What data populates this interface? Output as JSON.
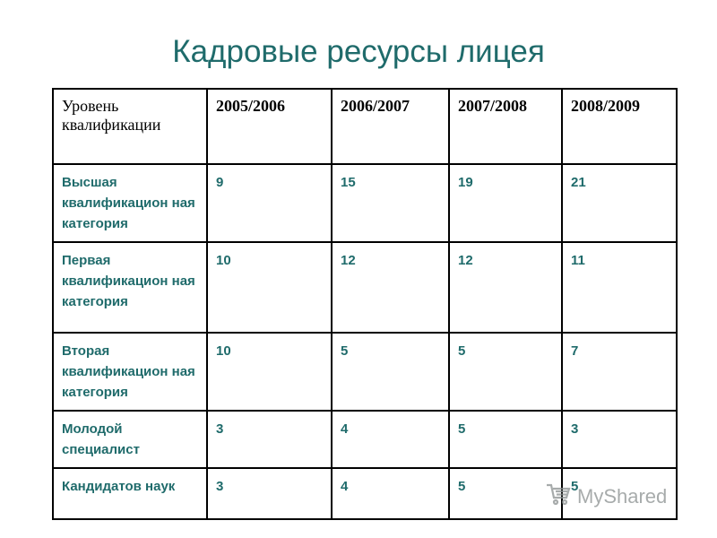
{
  "title": "Кадровые ресурсы лицея",
  "table": {
    "header": [
      "Уровень квалификации",
      "2005/2006",
      "2006/2007",
      "2007/2008",
      "2008/2009"
    ],
    "rows": [
      {
        "label": "Высшая квалификацион ная категория",
        "values": [
          "9",
          "15",
          "19",
          "21"
        ]
      },
      {
        "label": "Первая квалификацион ная категория",
        "values": [
          "10",
          "12",
          "12",
          "11"
        ]
      },
      {
        "label": "Вторая квалификацион ная категория",
        "values": [
          "10",
          "5",
          "5",
          "7"
        ]
      },
      {
        "label": "Молодой специалист",
        "values": [
          "3",
          "4",
          "5",
          "3"
        ]
      },
      {
        "label": "Кандидатов наук",
        "values": [
          "3",
          "4",
          "5",
          "5"
        ]
      }
    ]
  },
  "watermark": {
    "text": "MyShared",
    "icon": "shopping-cart-icon"
  },
  "colors": {
    "title": "#1f6b6b",
    "cell_text": "#1f6b6b",
    "header_text": "#000000",
    "border": "#000000"
  }
}
